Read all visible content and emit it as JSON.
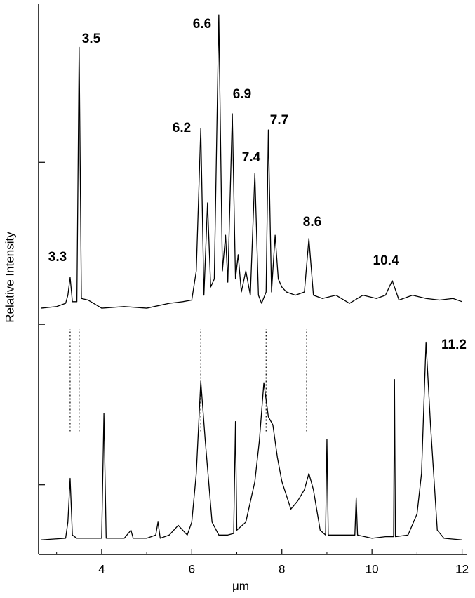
{
  "chart_data": {
    "type": "line",
    "x_label": "μm",
    "y_label": "Relative Intensity",
    "xlim": [
      2.6,
      12.1
    ],
    "xticks": [
      4,
      6,
      8,
      10,
      12
    ],
    "xticks_minor": [
      3,
      5,
      7,
      9,
      11
    ],
    "ylim": [
      0,
      3.4
    ],
    "yticks": [
      0.43,
      1.42,
      2.42
    ],
    "guide_lines": [
      3.3,
      3.5,
      6.2,
      7.65,
      8.55
    ],
    "guide_range": [
      0.76,
      1.39
    ],
    "series": [
      {
        "color": "#000000",
        "x": [
          2.65,
          3.0,
          3.2,
          3.25,
          3.3,
          3.35,
          3.45,
          3.5,
          3.55,
          3.7,
          4.0,
          4.5,
          5.0,
          5.5,
          5.8,
          6.0,
          6.1,
          6.2,
          6.27,
          6.35,
          6.42,
          6.5,
          6.6,
          6.68,
          6.75,
          6.8,
          6.9,
          6.97,
          7.03,
          7.1,
          7.2,
          7.3,
          7.4,
          7.48,
          7.55,
          7.65,
          7.7,
          7.77,
          7.85,
          7.92,
          8.0,
          8.1,
          8.3,
          8.5,
          8.6,
          8.7,
          8.9,
          9.2,
          9.5,
          9.8,
          10.1,
          10.3,
          10.45,
          10.6,
          10.9,
          11.2,
          11.5,
          11.8,
          12.0
        ],
        "values": [
          1.52,
          1.53,
          1.55,
          1.6,
          1.71,
          1.56,
          1.56,
          3.13,
          1.58,
          1.57,
          1.52,
          1.53,
          1.52,
          1.55,
          1.56,
          1.57,
          1.75,
          2.63,
          1.6,
          2.17,
          1.65,
          1.7,
          3.33,
          1.75,
          1.97,
          1.68,
          2.72,
          1.7,
          1.85,
          1.62,
          1.75,
          1.6,
          2.35,
          1.6,
          1.55,
          1.62,
          2.62,
          1.62,
          1.97,
          1.7,
          1.65,
          1.62,
          1.6,
          1.62,
          1.95,
          1.6,
          1.58,
          1.6,
          1.55,
          1.6,
          1.58,
          1.6,
          1.69,
          1.57,
          1.6,
          1.58,
          1.57,
          1.58,
          1.56
        ]
      },
      {
        "color": "#000000",
        "x": [
          2.65,
          3.2,
          3.25,
          3.3,
          3.35,
          3.45,
          3.7,
          4.0,
          4.05,
          4.1,
          4.5,
          4.65,
          4.7,
          5.0,
          5.2,
          5.25,
          5.3,
          5.5,
          5.7,
          5.9,
          6.0,
          6.1,
          6.2,
          6.3,
          6.45,
          6.6,
          6.8,
          6.93,
          6.97,
          7.0,
          7.2,
          7.4,
          7.5,
          7.6,
          7.7,
          7.8,
          7.9,
          8.0,
          8.2,
          8.35,
          8.5,
          8.6,
          8.7,
          8.85,
          8.97,
          9.0,
          9.03,
          9.3,
          9.62,
          9.65,
          9.68,
          10.0,
          10.3,
          10.48,
          10.5,
          10.52,
          10.8,
          11.0,
          11.1,
          11.2,
          11.3,
          11.45,
          11.6,
          12.0
        ],
        "values": [
          0.09,
          0.1,
          0.2,
          0.47,
          0.12,
          0.1,
          0.1,
          0.1,
          0.87,
          0.1,
          0.1,
          0.15,
          0.1,
          0.1,
          0.12,
          0.2,
          0.1,
          0.12,
          0.18,
          0.12,
          0.2,
          0.5,
          1.07,
          0.7,
          0.2,
          0.12,
          0.12,
          0.13,
          0.82,
          0.15,
          0.2,
          0.45,
          0.7,
          1.06,
          0.85,
          0.8,
          0.6,
          0.45,
          0.28,
          0.33,
          0.4,
          0.5,
          0.4,
          0.15,
          0.12,
          0.71,
          0.12,
          0.12,
          0.12,
          0.35,
          0.12,
          0.1,
          0.11,
          0.11,
          1.08,
          0.11,
          0.12,
          0.25,
          0.5,
          1.31,
          0.8,
          0.15,
          0.1,
          0.09
        ]
      }
    ],
    "annotations": [
      "3.3",
      "3.5",
      "6.6",
      "6.2",
      "6.9",
      "7.4",
      "7.7",
      "8.6",
      "10.4",
      "11.2"
    ]
  }
}
